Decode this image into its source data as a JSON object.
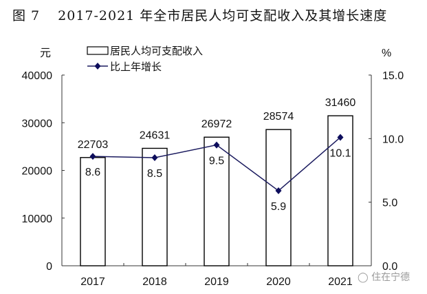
{
  "title": {
    "figure_label": "图 7",
    "text": "2017-2021 年全市居民人均可支配收入及其增长速度"
  },
  "watermark": {
    "icon": "wechat-icon",
    "text": "住在宁德"
  },
  "colors": {
    "bar_fill": "#ffffff",
    "bar_stroke": "#000000",
    "line": "#1a1a5e",
    "marker": "#0d0d5c",
    "axis": "#333333"
  },
  "chart_data": {
    "type": "bar+line",
    "title": "2017-2021 年全市居民人均可支配收入及其增长速度",
    "categories": [
      "2017",
      "2018",
      "2019",
      "2020",
      "2021"
    ],
    "series": [
      {
        "name": "居民人均可支配收入",
        "type": "bar",
        "axis": "left",
        "values": [
          22703,
          24631,
          26972,
          28574,
          31460
        ],
        "labels": [
          "22703",
          "24631",
          "26972",
          "28574",
          "31460"
        ]
      },
      {
        "name": "比上年增长",
        "type": "line",
        "axis": "right",
        "values": [
          8.6,
          8.5,
          9.5,
          5.9,
          10.1
        ],
        "labels": [
          "8.6",
          "8.5",
          "9.5",
          "5.9",
          "10.1"
        ]
      }
    ],
    "left_axis": {
      "unit": "元",
      "ylim": [
        0,
        40000
      ],
      "ticks": [
        "0",
        "10000",
        "20000",
        "30000",
        "40000"
      ]
    },
    "right_axis": {
      "unit": "%",
      "ylim": [
        0,
        15
      ],
      "ticks": [
        "0.0",
        "5.0",
        "10.0",
        "15.0"
      ]
    },
    "legend": {
      "position": "top",
      "entries": [
        "居民人均可支配收入",
        "比上年增长"
      ]
    },
    "grid": false
  }
}
